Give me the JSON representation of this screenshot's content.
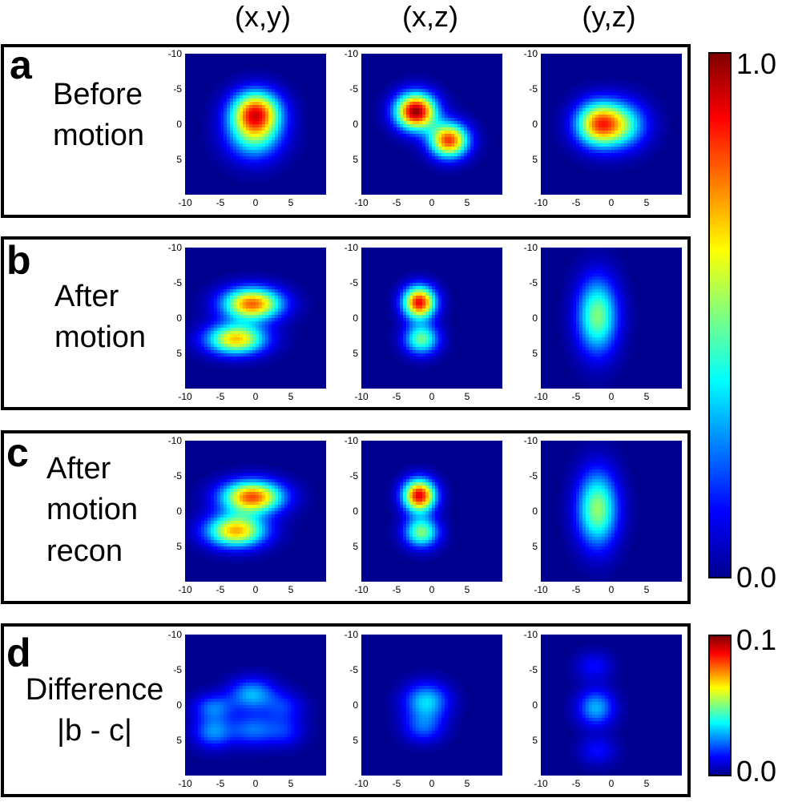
{
  "columns": [
    "(x,y)",
    "(x,z)",
    "(y,z)"
  ],
  "panels": [
    {
      "letter": "a",
      "label_lines": [
        "Before",
        "motion"
      ],
      "scale_max": 1.0,
      "plots": [
        {
          "view": "(x,y)",
          "blobs": [
            {
              "x": 0,
              "y": -1.8,
              "sx": 2.4,
              "sy": 2.1,
              "amp": 0.72
            },
            {
              "x": -0.2,
              "y": 1.5,
              "sx": 2.7,
              "sy": 2.5,
              "amp": 0.42
            }
          ]
        },
        {
          "view": "(x,z)",
          "blobs": [
            {
              "x": -2.3,
              "y": -1.8,
              "sx": 2.0,
              "sy": 1.8,
              "amp": 0.98
            },
            {
              "x": 2.4,
              "y": 2.3,
              "sx": 1.9,
              "sy": 1.7,
              "amp": 0.82
            }
          ]
        },
        {
          "view": "(y,z)",
          "blobs": [
            {
              "x": -1.8,
              "y": 0.0,
              "sx": 2.3,
              "sy": 2.2,
              "amp": 0.72
            },
            {
              "x": 1.8,
              "y": 0.1,
              "sx": 2.4,
              "sy": 2.3,
              "amp": 0.36
            }
          ]
        }
      ]
    },
    {
      "letter": "b",
      "label_lines": [
        "After",
        "motion"
      ],
      "scale_max": 1.0,
      "plots": [
        {
          "view": "(x,y)",
          "blobs": [
            {
              "x": -0.5,
              "y": -2.0,
              "sx": 2.9,
              "sy": 1.6,
              "amp": 0.78
            },
            {
              "x": -2.8,
              "y": 3.0,
              "sx": 2.9,
              "sy": 1.5,
              "amp": 0.68
            }
          ]
        },
        {
          "view": "(x,z)",
          "blobs": [
            {
              "x": -1.8,
              "y": -2.2,
              "sx": 1.6,
              "sy": 1.6,
              "amp": 0.88
            },
            {
              "x": -1.5,
              "y": 3.0,
              "sx": 1.7,
              "sy": 1.5,
              "amp": 0.48
            }
          ]
        },
        {
          "view": "(y,z)",
          "blobs": [
            {
              "x": -2.0,
              "y": -0.3,
              "sx": 2.0,
              "sy": 3.7,
              "amp": 0.5
            }
          ]
        }
      ]
    },
    {
      "letter": "c",
      "label_lines": [
        "After",
        "motion",
        "recon"
      ],
      "scale_max": 1.0,
      "plots": [
        {
          "view": "(x,y)",
          "blobs": [
            {
              "x": -0.5,
              "y": -2.0,
              "sx": 3.0,
              "sy": 1.6,
              "amp": 0.8
            },
            {
              "x": -2.8,
              "y": 2.8,
              "sx": 2.9,
              "sy": 1.6,
              "amp": 0.7
            }
          ]
        },
        {
          "view": "(x,z)",
          "blobs": [
            {
              "x": -1.8,
              "y": -2.2,
              "sx": 1.6,
              "sy": 1.6,
              "amp": 0.9
            },
            {
              "x": -1.5,
              "y": 3.0,
              "sx": 1.7,
              "sy": 1.5,
              "amp": 0.5
            }
          ]
        },
        {
          "view": "(y,z)",
          "blobs": [
            {
              "x": -2.0,
              "y": -0.3,
              "sx": 2.0,
              "sy": 3.7,
              "amp": 0.52
            }
          ]
        }
      ]
    },
    {
      "letter": "d",
      "label_lines": [
        "Difference",
        "|b - c|"
      ],
      "scale_max": 0.1,
      "plots": [
        {
          "view": "(x,y)",
          "blobs": [
            {
              "x": -6,
              "y": 0.3,
              "sx": 2.0,
              "sy": 1.3,
              "amp": 0.022
            },
            {
              "x": -0.5,
              "y": -1.5,
              "sx": 2.3,
              "sy": 1.6,
              "amp": 0.03
            },
            {
              "x": 4,
              "y": 0.3,
              "sx": 2.0,
              "sy": 1.5,
              "amp": 0.015
            },
            {
              "x": -6,
              "y": 3.8,
              "sx": 2.0,
              "sy": 1.6,
              "amp": 0.026
            },
            {
              "x": -0.5,
              "y": 3.5,
              "sx": 2.2,
              "sy": 1.6,
              "amp": 0.022
            },
            {
              "x": 4,
              "y": 3.8,
              "sx": 2.0,
              "sy": 1.5,
              "amp": 0.015
            }
          ]
        },
        {
          "view": "(x,z)",
          "blobs": [
            {
              "x": -0.8,
              "y": -0.5,
              "sx": 2.2,
              "sy": 1.8,
              "amp": 0.034
            },
            {
              "x": -1.2,
              "y": 3.2,
              "sx": 2.0,
              "sy": 1.5,
              "amp": 0.02
            }
          ]
        },
        {
          "view": "(y,z)",
          "blobs": [
            {
              "x": -2.5,
              "y": -5.5,
              "sx": 1.8,
              "sy": 1.4,
              "amp": 0.013
            },
            {
              "x": -2.2,
              "y": 0.4,
              "sx": 1.8,
              "sy": 1.8,
              "amp": 0.03
            },
            {
              "x": -2.0,
              "y": 6.5,
              "sx": 1.8,
              "sy": 1.4,
              "amp": 0.013
            }
          ]
        }
      ]
    }
  ],
  "axis_ticks": {
    "values": [
      -10,
      -5,
      0,
      5
    ],
    "labels": [
      "-10",
      "-5",
      "0",
      "5"
    ],
    "range": [
      -10,
      10
    ]
  },
  "colorbars": [
    {
      "max_label": "1.0",
      "min_label": "0.0",
      "range": [
        0,
        1.0
      ]
    },
    {
      "max_label": "0.1",
      "min_label": "0.0",
      "range": [
        0,
        0.1
      ]
    }
  ]
}
